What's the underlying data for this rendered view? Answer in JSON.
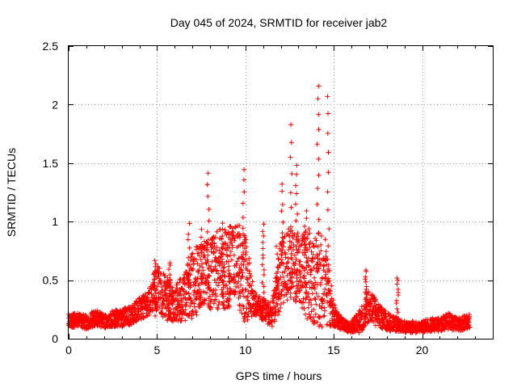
{
  "chart_data": {
    "type": "scatter",
    "title": "Day 045 of 2024, SRMTID for receiver jab2",
    "xlabel": "GPS time / hours",
    "ylabel": "SRMTID / TECUs",
    "xlim": [
      0,
      24
    ],
    "ylim": [
      0,
      2.5
    ],
    "x_ticks": [
      0,
      5,
      10,
      15,
      20
    ],
    "x_tick_labels": [
      "0",
      "5",
      "10",
      "15",
      "20"
    ],
    "y_ticks": [
      0,
      0.5,
      1,
      1.5,
      2,
      2.5
    ],
    "y_tick_labels": [
      "0",
      "0.5",
      "1",
      "1.5",
      "2",
      "2.5"
    ],
    "grid": true,
    "marker": "+",
    "series": [
      {
        "name": "SRMTID",
        "color": "#ff0000",
        "profile_hours": [
          0,
          0.5,
          1,
          1.5,
          2,
          2.5,
          3,
          3.5,
          4,
          4.5,
          5,
          5.5,
          6,
          6.5,
          7,
          7.5,
          8,
          8.5,
          9,
          9.5,
          10,
          10.5,
          11,
          11.5,
          12,
          12.5,
          13,
          13.5,
          14,
          14.5,
          15,
          15.5,
          16,
          16.5,
          17,
          17.5,
          18,
          18.5,
          19,
          19.5,
          20,
          20.5,
          21,
          21.5,
          22,
          22.7
        ],
        "profile_typical": [
          0.15,
          0.16,
          0.14,
          0.18,
          0.15,
          0.17,
          0.18,
          0.2,
          0.25,
          0.3,
          0.45,
          0.35,
          0.3,
          0.35,
          0.45,
          0.55,
          0.55,
          0.6,
          0.6,
          0.65,
          0.5,
          0.3,
          0.25,
          0.2,
          0.55,
          0.65,
          0.6,
          0.55,
          0.5,
          0.5,
          0.2,
          0.12,
          0.1,
          0.15,
          0.3,
          0.2,
          0.15,
          0.12,
          0.1,
          0.1,
          0.1,
          0.12,
          0.12,
          0.15,
          0.12,
          0.15
        ],
        "profile_spread": [
          0.06,
          0.06,
          0.06,
          0.07,
          0.06,
          0.07,
          0.08,
          0.08,
          0.1,
          0.1,
          0.2,
          0.2,
          0.15,
          0.2,
          0.3,
          0.3,
          0.3,
          0.35,
          0.35,
          0.35,
          0.4,
          0.1,
          0.1,
          0.1,
          0.3,
          0.3,
          0.3,
          0.4,
          0.4,
          0.4,
          0.1,
          0.05,
          0.05,
          0.1,
          0.15,
          0.1,
          0.08,
          0.06,
          0.05,
          0.05,
          0.05,
          0.06,
          0.06,
          0.07,
          0.06,
          0.06
        ],
        "peaks": [
          {
            "x": 4.9,
            "y": 0.68
          },
          {
            "x": 5.7,
            "y": 0.65
          },
          {
            "x": 6.8,
            "y": 0.97
          },
          {
            "x": 7.5,
            "y": 0.92
          },
          {
            "x": 7.9,
            "y": 1.41
          },
          {
            "x": 8.7,
            "y": 1.0
          },
          {
            "x": 9.1,
            "y": 0.95
          },
          {
            "x": 9.9,
            "y": 1.45
          },
          {
            "x": 11.0,
            "y": 0.97
          },
          {
            "x": 11.8,
            "y": 0.8
          },
          {
            "x": 12.1,
            "y": 1.33
          },
          {
            "x": 12.6,
            "y": 1.82
          },
          {
            "x": 12.9,
            "y": 1.47
          },
          {
            "x": 13.4,
            "y": 1.08
          },
          {
            "x": 14.1,
            "y": 2.17
          },
          {
            "x": 14.7,
            "y": 2.07
          },
          {
            "x": 16.8,
            "y": 0.6
          },
          {
            "x": 18.6,
            "y": 0.53
          }
        ]
      }
    ]
  }
}
